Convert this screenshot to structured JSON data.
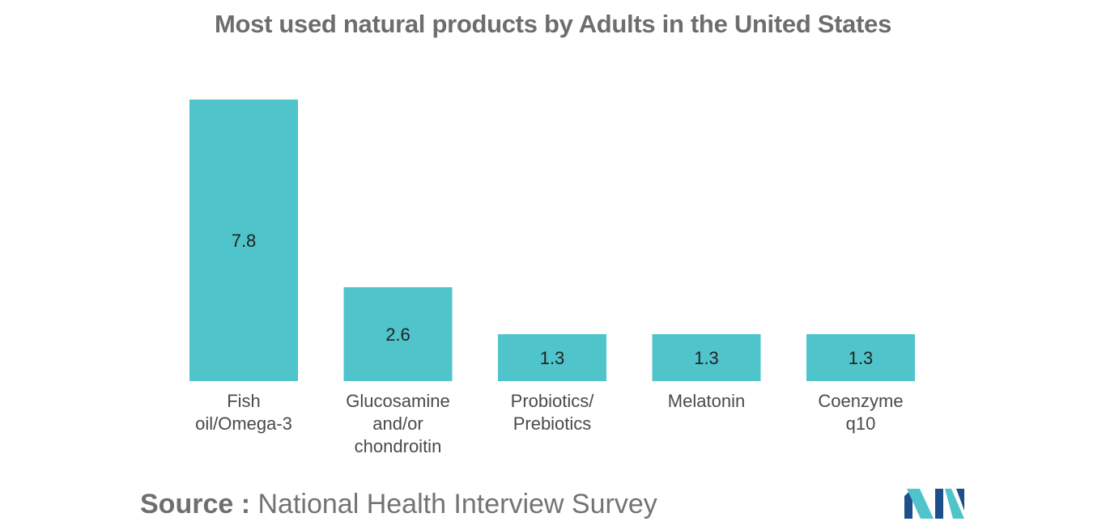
{
  "chart_data": {
    "type": "bar",
    "title": "Most used natural products by Adults in the United States",
    "categories": [
      [
        "Fish",
        "oil/Omega-3"
      ],
      [
        "Glucosamine",
        "and/or",
        "chondroitin"
      ],
      [
        "Probiotics/",
        "Prebiotics"
      ],
      [
        "Melatonin"
      ],
      [
        "Coenzyme",
        "q10"
      ]
    ],
    "values": [
      7.8,
      2.6,
      1.3,
      1.3,
      1.3
    ],
    "data_labels": [
      "7.8",
      "2.6",
      "1.3",
      "1.3",
      "1.3"
    ],
    "xlabel": "",
    "ylabel": "",
    "ylim": [
      0,
      7.8
    ],
    "grid": false,
    "legend": "none",
    "bar_color": "#4fc4ca"
  },
  "source": {
    "label": "Source :",
    "text": "National Health Interview Survey"
  },
  "logo": {
    "icon": "mordor-intelligence-logo-icon",
    "colors": [
      "#1d4f8a",
      "#4fc4ca"
    ]
  }
}
